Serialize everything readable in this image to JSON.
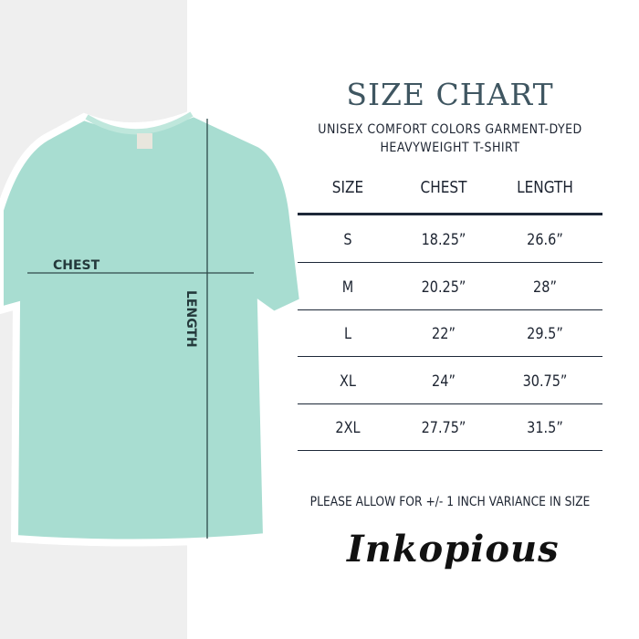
{
  "title": "SIZE CHART",
  "subtitle_line1": "UNISEX COMFORT COLORS GARMENT-DYED",
  "subtitle_line2": "HEAVYWEIGHT T-SHIRT",
  "shirt": {
    "color": "#a8ddd1",
    "chest_label": "CHEST",
    "length_label": "LENGTH"
  },
  "table": {
    "headers": [
      "SIZE",
      "CHEST",
      "LENGTH"
    ],
    "rows": [
      [
        "S",
        "18.25”",
        "26.6”"
      ],
      [
        "M",
        "20.25”",
        "28”"
      ],
      [
        "L",
        "22”",
        "29.5”"
      ],
      [
        "XL",
        "24”",
        "30.75”"
      ],
      [
        "2XL",
        "27.75”",
        "31.5”"
      ]
    ]
  },
  "note": "PLEASE ALLOW FOR +/- 1 INCH VARIANCE IN SIZE",
  "brand": "Inkopious"
}
